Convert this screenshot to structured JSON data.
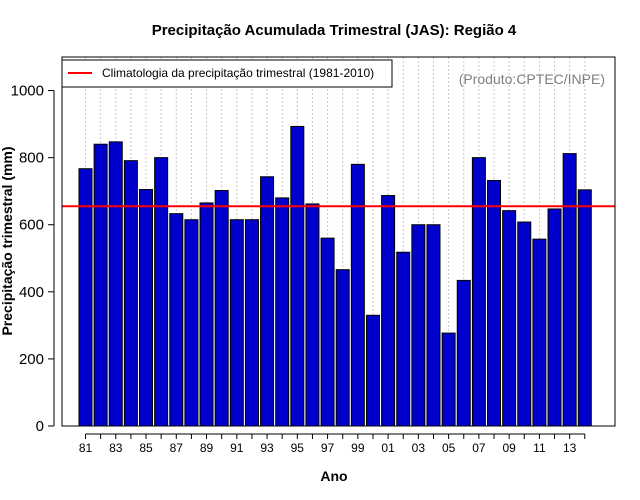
{
  "chart_data": {
    "type": "bar",
    "title": "Precipitação Acumulada Trimestral (JAS): Região 4",
    "xlabel": "Ano",
    "ylabel": "Precipitação trimestral (mm)",
    "ylim": [
      0,
      1100
    ],
    "yticks": [
      0,
      200,
      400,
      600,
      800,
      1000
    ],
    "categories": [
      "81",
      "82",
      "83",
      "84",
      "85",
      "86",
      "87",
      "88",
      "89",
      "90",
      "91",
      "92",
      "93",
      "94",
      "95",
      "96",
      "97",
      "98",
      "99",
      "00",
      "01",
      "02",
      "03",
      "04",
      "05",
      "06",
      "07",
      "08",
      "09",
      "10",
      "11",
      "12",
      "13",
      "14"
    ],
    "tick_labels": [
      "81",
      "83",
      "85",
      "87",
      "89",
      "91",
      "93",
      "95",
      "97",
      "99",
      "01",
      "03",
      "05",
      "07",
      "09",
      "11",
      "13"
    ],
    "values": [
      767,
      840,
      847,
      791,
      705,
      800,
      633,
      615,
      665,
      702,
      615,
      615,
      743,
      680,
      893,
      662,
      560,
      466,
      780,
      330,
      687,
      518,
      600,
      600,
      277,
      434,
      800,
      732,
      642,
      608,
      557,
      647,
      812,
      704
    ],
    "climatology": {
      "value": 655,
      "label": "Climatologia da precipitação trimestral (1981-2010)"
    },
    "bar_color": "#0000cd",
    "line_color": "#ff0000",
    "grid": "vertical dotted",
    "legend_position": "top-left",
    "source_note": "(Produto:CPTEC/INPE)"
  }
}
